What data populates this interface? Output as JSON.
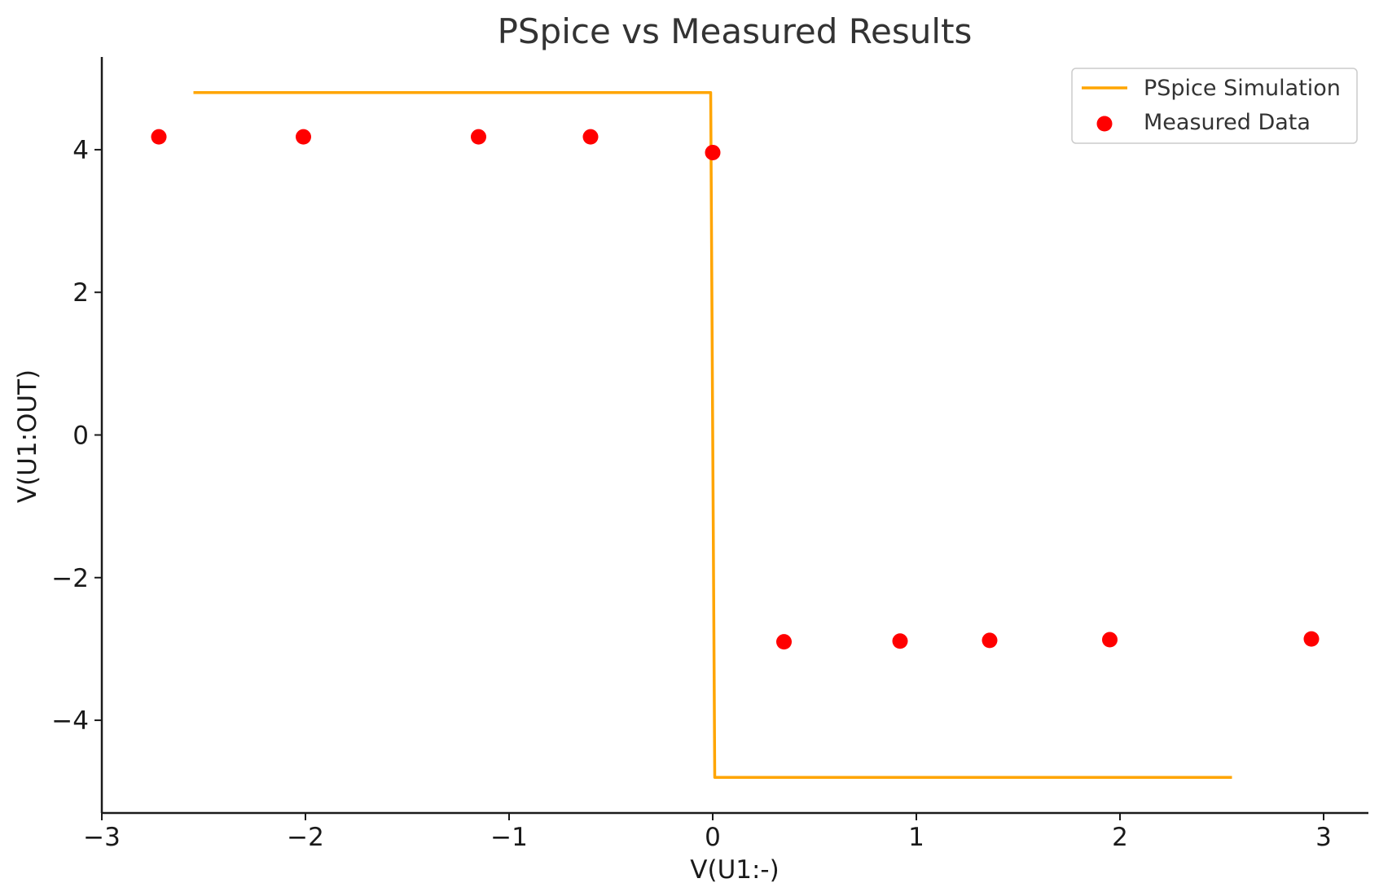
{
  "chart_data": {
    "type": "line",
    "title": "PSpice vs Measured Results",
    "xlabel": "V(U1:-)",
    "ylabel": "V(U1:OUT)",
    "xlim": [
      -3,
      3.22
    ],
    "ylim": [
      -5.3,
      5.3
    ],
    "x_ticks": [
      -3,
      -2,
      -1,
      0,
      1,
      2,
      3
    ],
    "x_tick_labels": [
      "−3",
      "−2",
      "−1",
      "0",
      "1",
      "2",
      "3"
    ],
    "y_ticks": [
      -4,
      -2,
      0,
      2,
      4
    ],
    "y_tick_labels": [
      "−4",
      "−2",
      "0",
      "2",
      "4"
    ],
    "grid": false,
    "legend_position": "top-right",
    "series": [
      {
        "name": "PSpice Simulation",
        "kind": "line",
        "color": "#FFA500",
        "x": [
          -2.55,
          -0.01,
          0.0,
          0.01,
          2.55
        ],
        "y": [
          4.8,
          4.8,
          0.0,
          -4.8,
          -4.8
        ]
      },
      {
        "name": "Measured Data",
        "kind": "scatter",
        "color": "#FF0000",
        "x": [
          -2.72,
          -2.01,
          -1.15,
          -0.6,
          0.0,
          0.35,
          0.92,
          1.36,
          1.95,
          2.94
        ],
        "y": [
          4.18,
          4.18,
          4.18,
          4.18,
          3.96,
          -2.9,
          -2.89,
          -2.88,
          -2.87,
          -2.86
        ]
      }
    ]
  }
}
